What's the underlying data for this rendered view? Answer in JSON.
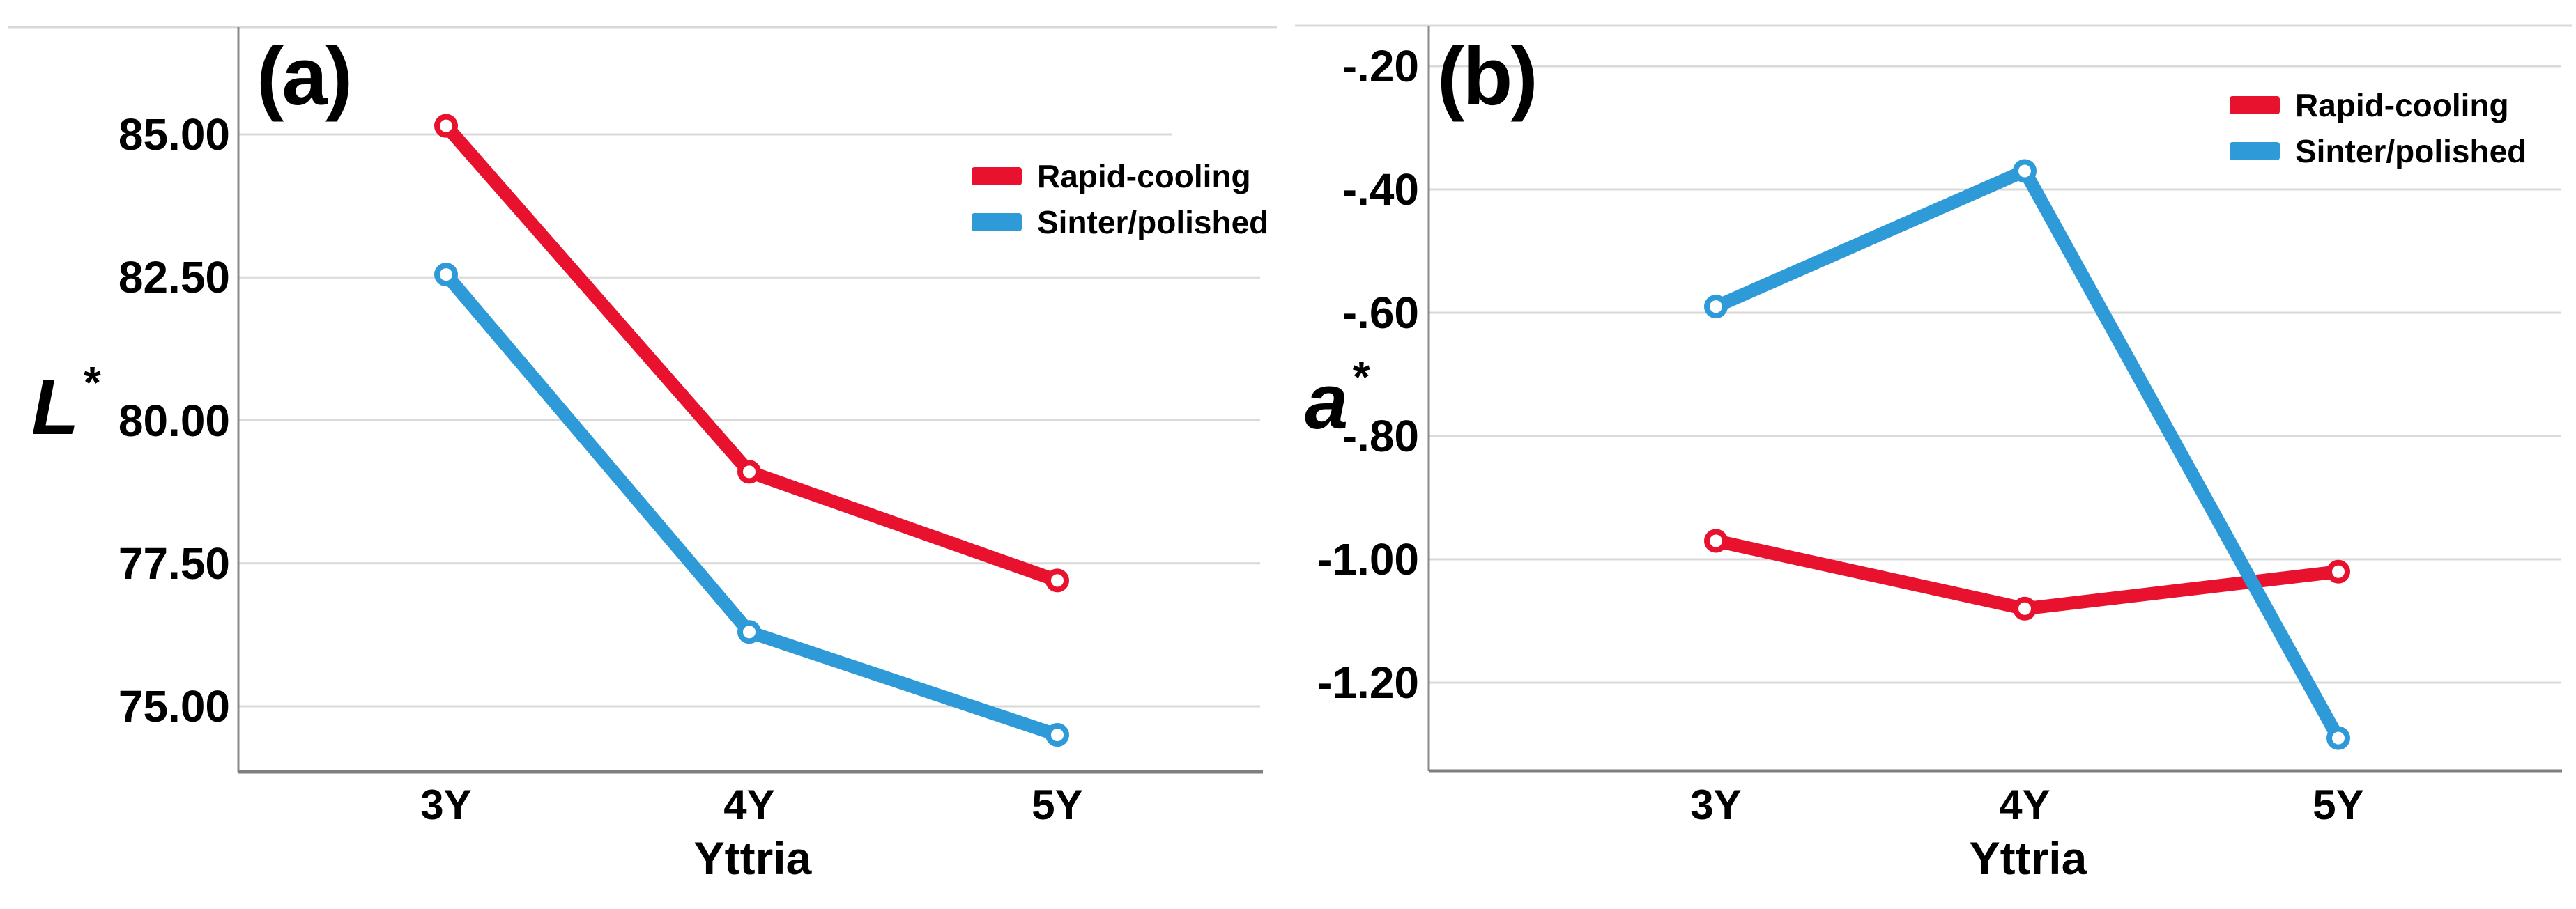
{
  "styles": {
    "grid_color": "#D9D9D9",
    "axis_color": "#8A8A8A",
    "x_axis_color": "#7F7F7F",
    "text_color": "#000000",
    "background": "#FFFFFF",
    "rapid_cooling_color": "#E8122F",
    "sinter_polished_color": "#2E9AD7"
  },
  "chart_data": [
    {
      "type": "line",
      "panel_label": "(a)",
      "title": "",
      "ylabel": "L*",
      "ylabel_base": "L",
      "ylabel_sup": "*",
      "xlabel": "Yttria",
      "categories": [
        "3Y",
        "4Y",
        "5Y"
      ],
      "y_ticks": [
        {
          "label": "85.00",
          "value": 85.0
        },
        {
          "label": "82.50",
          "value": 82.5
        },
        {
          "label": "80.00",
          "value": 80.0
        },
        {
          "label": "77.50",
          "value": 77.5
        },
        {
          "label": "75.00",
          "value": 75.0
        }
      ],
      "ylim": [
        73.9,
        86.9
      ],
      "grid": true,
      "legend_position": "upper right",
      "marker": "open-circle",
      "series": [
        {
          "name": "Rapid-cooling",
          "color": "#E8122F",
          "values": [
            85.15,
            79.1,
            77.2
          ]
        },
        {
          "name": "Sinter/polished",
          "color": "#2E9AD7",
          "values": [
            82.55,
            76.3,
            74.5
          ]
        }
      ]
    },
    {
      "type": "line",
      "panel_label": "(b)",
      "title": "",
      "ylabel": "a*",
      "ylabel_base": "a",
      "ylabel_sup": "*",
      "xlabel": "Yttria",
      "categories": [
        "3Y",
        "4Y",
        "5Y"
      ],
      "y_ticks": [
        {
          "label": "-.20",
          "value": -0.2
        },
        {
          "label": "-.40",
          "value": -0.4
        },
        {
          "label": "-.60",
          "value": -0.6
        },
        {
          "label": "-.80",
          "value": -0.8
        },
        {
          "label": "-1.00",
          "value": -1.0
        },
        {
          "label": "-1.20",
          "value": -1.2
        }
      ],
      "ylim": [
        -1.35,
        -0.13
      ],
      "grid": true,
      "legend_position": "upper right",
      "marker": "open-circle",
      "series": [
        {
          "name": "Rapid-cooling",
          "color": "#E8122F",
          "values": [
            -0.97,
            -1.08,
            -1.02
          ]
        },
        {
          "name": "Sinter/polished",
          "color": "#2E9AD7",
          "values": [
            -0.59,
            -0.37,
            -1.29
          ]
        }
      ]
    }
  ]
}
